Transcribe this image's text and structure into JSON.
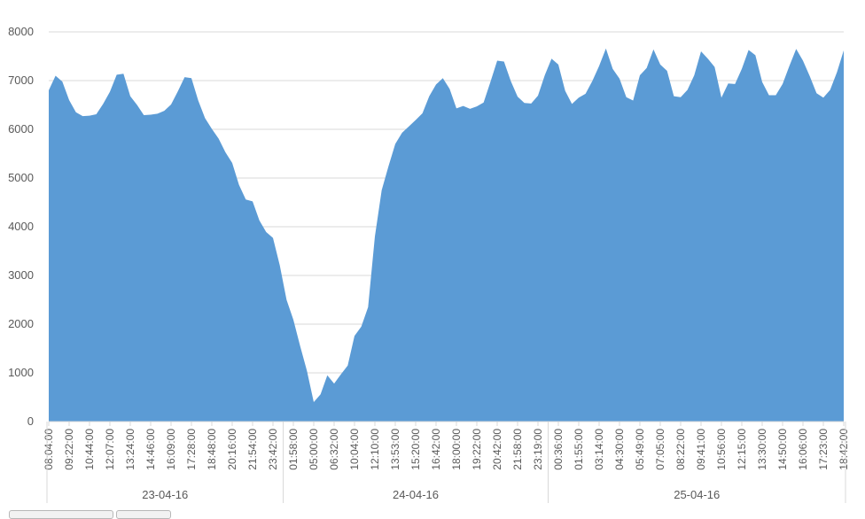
{
  "chart_data": {
    "type": "area",
    "color": "#5B9BD5",
    "grid": true,
    "ylim": [
      0,
      8000
    ],
    "yticks": [
      0,
      1000,
      2000,
      3000,
      4000,
      5000,
      6000,
      7000,
      8000
    ],
    "x_tick_labels": [
      "08:04:00",
      "09:22:00",
      "10:44:00",
      "12:07:00",
      "13:24:00",
      "14:46:00",
      "16:09:00",
      "17:28:00",
      "18:48:00",
      "20:16:00",
      "21:54:00",
      "23:42:00",
      "01:58:00",
      "05:00:00",
      "06:32:00",
      "10:04:00",
      "12:10:00",
      "13:53:00",
      "15:20:00",
      "16:42:00",
      "18:00:00",
      "19:22:00",
      "20:42:00",
      "21:58:00",
      "23:19:00",
      "00:36:00",
      "01:55:00",
      "03:14:00",
      "04:30:00",
      "05:49:00",
      "07:05:00",
      "08:22:00",
      "09:41:00",
      "10:56:00",
      "12:15:00",
      "13:30:00",
      "14:50:00",
      "16:06:00",
      "17:23:00",
      "18:42:00"
    ],
    "date_groups": [
      {
        "label": "23-04-16",
        "span": 12
      },
      {
        "label": "24-04-16",
        "span": 13
      },
      {
        "label": "25-04-16",
        "span": 15
      }
    ],
    "values": [
      6800,
      7100,
      6980,
      6600,
      6350,
      6270,
      6280,
      6310,
      6520,
      6770,
      7120,
      7140,
      6680,
      6500,
      6290,
      6300,
      6320,
      6380,
      6510,
      6780,
      7070,
      7050,
      6590,
      6230,
      6010,
      5810,
      5530,
      5310,
      4860,
      4560,
      4520,
      4130,
      3890,
      3770,
      3210,
      2500,
      2090,
      1550,
      1040,
      400,
      560,
      950,
      780,
      970,
      1150,
      1760,
      1950,
      2350,
      3800,
      4750,
      5240,
      5700,
      5930,
      6060,
      6190,
      6330,
      6680,
      6920,
      7050,
      6830,
      6430,
      6480,
      6420,
      6470,
      6550,
      6970,
      7410,
      7390,
      6990,
      6670,
      6540,
      6530,
      6690,
      7110,
      7450,
      7330,
      6790,
      6520,
      6650,
      6730,
      6990,
      7300,
      7660,
      7240,
      7040,
      6660,
      6590,
      7110,
      7260,
      7640,
      7330,
      7200,
      6680,
      6660,
      6810,
      7110,
      7600,
      7450,
      7280,
      6650,
      6940,
      6930,
      7240,
      7630,
      7520,
      6970,
      6700,
      6700,
      6930,
      7300,
      7650,
      7410,
      7090,
      6740,
      6650,
      6810,
      7170,
      7620
    ]
  }
}
